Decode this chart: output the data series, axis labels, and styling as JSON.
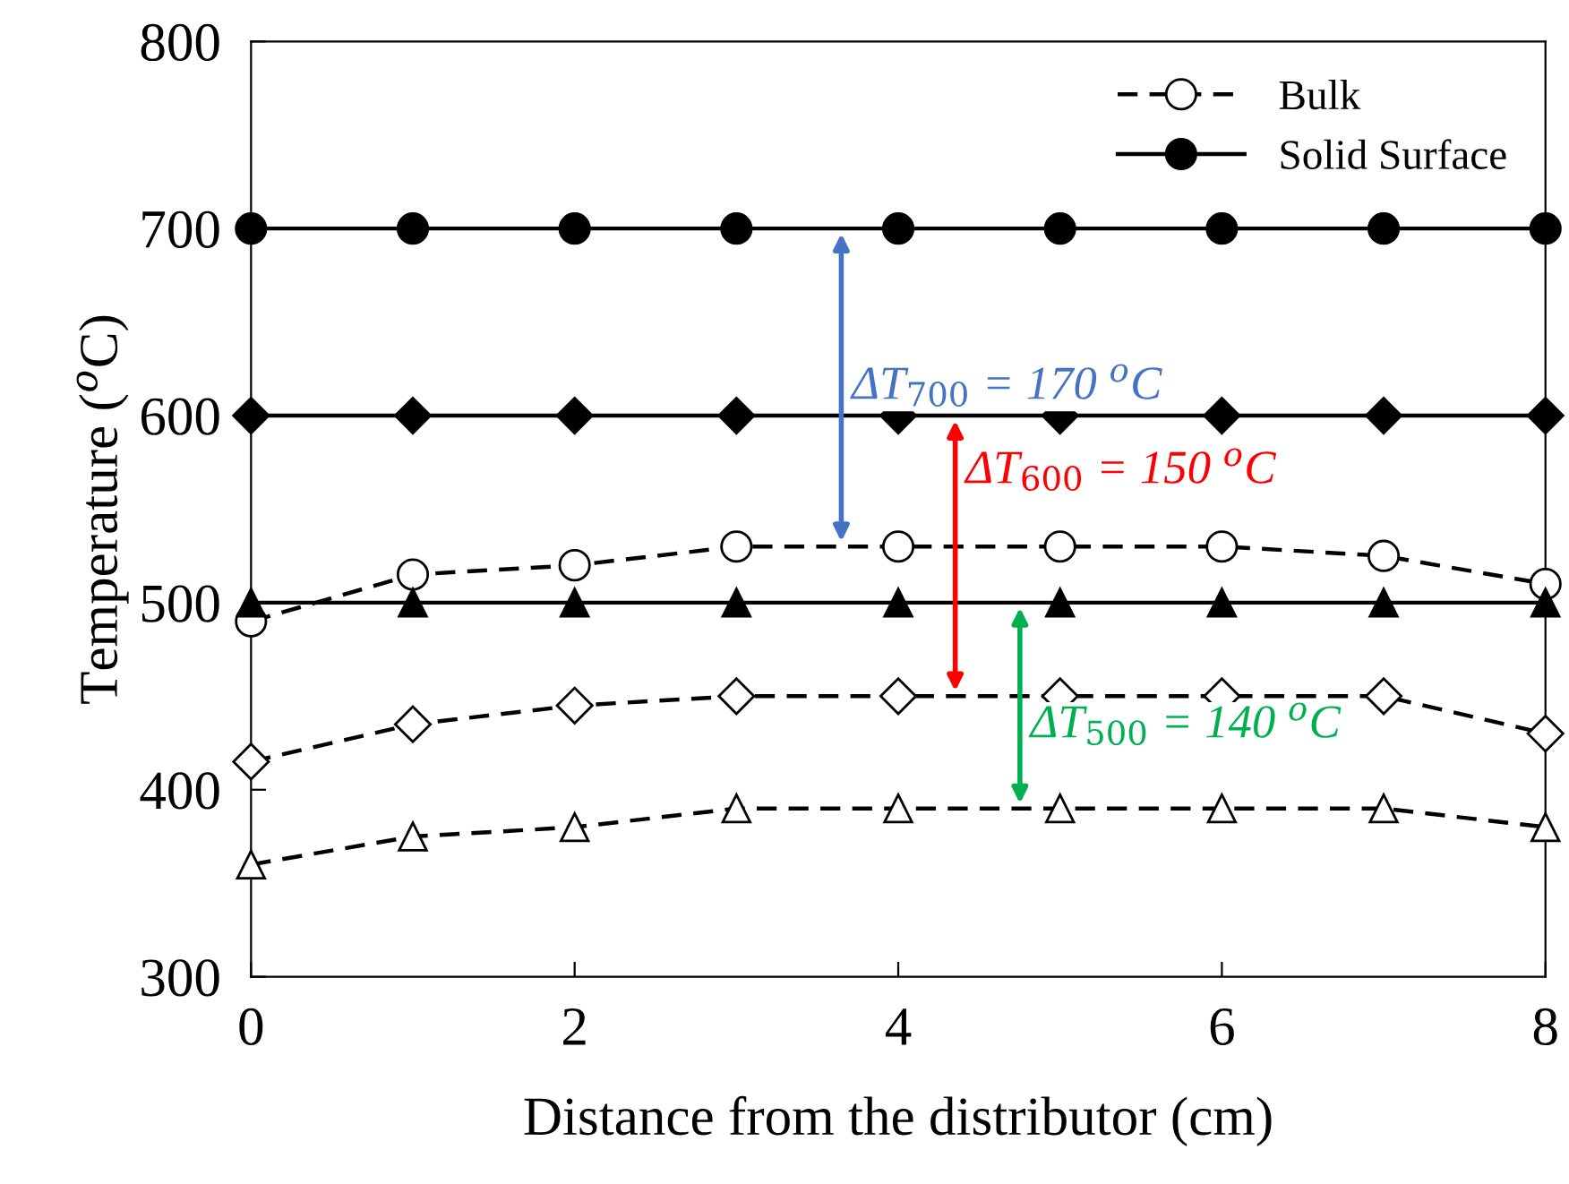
{
  "chart_data": {
    "type": "line",
    "xlabel": "Distance from the distributor (cm)",
    "ylabel": "Temperature ($^{o}$C)",
    "x": [
      0,
      1,
      2,
      3,
      4,
      5,
      6,
      7,
      8
    ],
    "series": [
      {
        "name": "Bulk",
        "color": "#000000",
        "marker": "circle",
        "line_style": "dashed",
        "values": [
          490,
          515,
          520,
          530,
          530,
          530,
          530,
          525,
          510
        ]
      },
      {
        "name": "Solid Surface",
        "color": "#000000",
        "marker": "circle",
        "line_style": "solid",
        "values": [
          700,
          700,
          700,
          700,
          700,
          700,
          700,
          700,
          700
        ]
      },
      {
        "color": "#000000",
        "marker": "diamond",
        "line_style": "dashed",
        "values": [
          415,
          435,
          445,
          450,
          450,
          450,
          450,
          450,
          430
        ]
      },
      {
        "color": "#000000",
        "marker": "diamond",
        "line_style": "solid",
        "values": [
          600,
          600,
          600,
          600,
          600,
          600,
          600,
          600,
          600
        ]
      },
      {
        "color": "#000000",
        "marker": "triangle",
        "line_style": "dashed",
        "values": [
          360,
          375,
          380,
          390,
          390,
          390,
          390,
          390,
          380
        ]
      },
      {
        "color": "#000000",
        "marker": "triangle",
        "line_style": "solid",
        "values": [
          500,
          500,
          500,
          500,
          500,
          500,
          500,
          500,
          500
        ]
      }
    ],
    "annotations": [
      "ΔT$_{700}$ = 170 $^{o}$C",
      "ΔT$_{600}$ = 150 $^{o}$C",
      "ΔT$_{500}$ = 140 $^{o}$C"
    ],
    "xlim": [
      0,
      8
    ],
    "xticks": [
      0,
      2,
      4,
      6,
      8
    ],
    "ylim": [
      300,
      800
    ],
    "yticks": [
      300,
      400,
      500,
      600,
      700,
      800
    ],
    "grid": false,
    "legend": "top right"
  }
}
